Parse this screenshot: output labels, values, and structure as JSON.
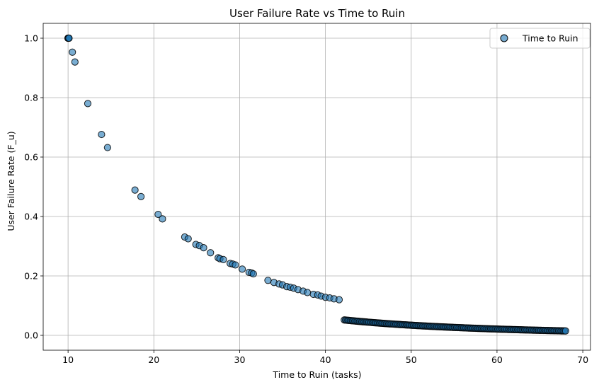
{
  "chart_data": {
    "type": "scatter",
    "title": "User Failure Rate vs Time to Ruin",
    "xlabel": "Time to Ruin (tasks)",
    "ylabel": "User Failure Rate (F_u)",
    "xlim": [
      7.1,
      70.9
    ],
    "ylim": [
      -0.05,
      1.05
    ],
    "xticks": [
      "10",
      "20",
      "30",
      "40",
      "50",
      "60",
      "70"
    ],
    "yticks": [
      "0.0",
      "0.2",
      "0.4",
      "0.6",
      "0.8",
      "1.0"
    ],
    "grid": true,
    "legend_position": "top-right",
    "series": [
      {
        "name": "Time to Ruin",
        "color": "#1f77b4",
        "edge_color": "#000000",
        "alpha": 0.6,
        "points": [
          [
            10.0,
            1.0
          ],
          [
            10.0,
            1.0
          ],
          [
            10.0,
            1.0
          ],
          [
            10.1,
            1.0
          ],
          [
            10.1,
            1.0
          ],
          [
            10.5,
            0.953
          ],
          [
            10.8,
            0.92
          ],
          [
            12.3,
            0.78
          ],
          [
            13.9,
            0.676
          ],
          [
            14.6,
            0.632
          ],
          [
            17.8,
            0.489
          ],
          [
            18.5,
            0.467
          ],
          [
            20.5,
            0.407
          ],
          [
            21.0,
            0.392
          ],
          [
            23.6,
            0.331
          ],
          [
            24.0,
            0.325
          ],
          [
            24.9,
            0.306
          ],
          [
            25.3,
            0.302
          ],
          [
            25.8,
            0.295
          ],
          [
            26.6,
            0.278
          ],
          [
            27.5,
            0.261
          ],
          [
            27.7,
            0.258
          ],
          [
            28.1,
            0.255
          ],
          [
            28.9,
            0.242
          ],
          [
            29.2,
            0.24
          ],
          [
            29.5,
            0.237
          ],
          [
            30.3,
            0.223
          ],
          [
            31.1,
            0.212
          ],
          [
            31.4,
            0.21
          ],
          [
            31.6,
            0.207
          ],
          [
            33.3,
            0.185
          ],
          [
            34.0,
            0.178
          ],
          [
            34.6,
            0.173
          ],
          [
            35.0,
            0.17
          ],
          [
            35.5,
            0.164
          ],
          [
            35.9,
            0.162
          ],
          [
            36.3,
            0.159
          ],
          [
            36.8,
            0.154
          ],
          [
            37.4,
            0.149
          ],
          [
            37.9,
            0.144
          ],
          [
            38.6,
            0.138
          ],
          [
            39.1,
            0.136
          ],
          [
            39.5,
            0.132
          ],
          [
            40.0,
            0.128
          ],
          [
            40.5,
            0.126
          ],
          [
            41.0,
            0.123
          ],
          [
            41.6,
            0.12
          ]
        ],
        "dense_band": {
          "x_range": [
            42.2,
            68.0
          ],
          "samples": 190,
          "model": "y = 1.35*(10/x)^2.2 - 0.005"
        }
      }
    ]
  }
}
